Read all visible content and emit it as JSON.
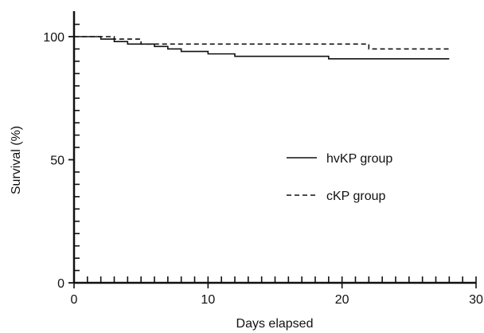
{
  "chart_data": {
    "type": "line",
    "chart_style": "step-survival",
    "title": "",
    "subtitle": "",
    "xlabel": "Days elapsed",
    "ylabel": "Survival (%)",
    "xlim": [
      0,
      30
    ],
    "ylim": [
      0,
      100
    ],
    "x_ticks": [
      0,
      10,
      20,
      30
    ],
    "y_ticks": [
      0,
      50,
      100
    ],
    "x_minor_step": 1,
    "y_minor_step": 5,
    "grid": false,
    "legend_position": "center-right",
    "series": [
      {
        "name": "hvKP group",
        "line_style": "solid",
        "color": "#111111",
        "x": [
          0,
          2,
          3,
          4,
          5,
          6,
          7,
          8,
          10,
          12,
          19,
          28
        ],
        "y": [
          100,
          99,
          98,
          97,
          97,
          96,
          95,
          94,
          93,
          92,
          91,
          91
        ]
      },
      {
        "name": "cKP group",
        "line_style": "dashed",
        "color": "#111111",
        "x": [
          0,
          3,
          5,
          22,
          28
        ],
        "y": [
          100,
          99,
          97,
          95,
          95
        ]
      }
    ]
  }
}
